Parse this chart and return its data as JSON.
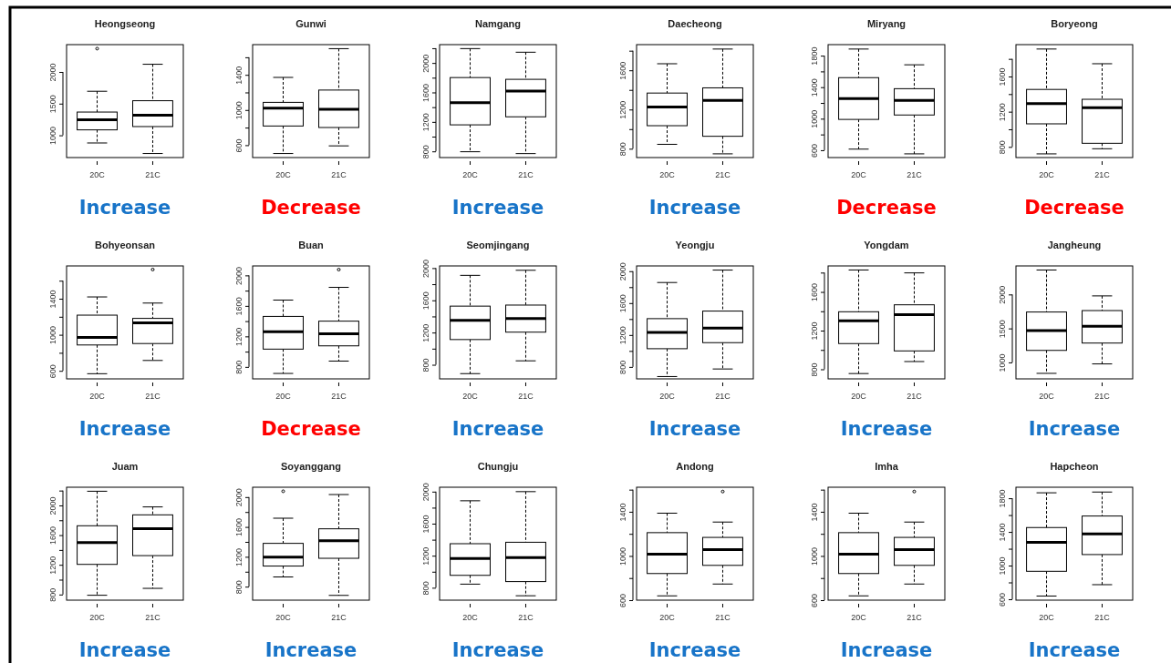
{
  "chart_data": [
    {
      "type": "box",
      "title": "Heongseong",
      "categories": [
        "20C",
        "21C"
      ],
      "ylim": [
        649,
        2431
      ],
      "yticks": [
        1000,
        1500,
        2000
      ],
      "annotations": [
        "Increase"
      ],
      "boxes": [
        {
          "low": 879,
          "q1": 1086,
          "median": 1247,
          "q3": 1367,
          "high": 1695,
          "outliers": [
            2368
          ]
        },
        {
          "low": 713,
          "q1": 1138,
          "median": 1316,
          "q3": 1546,
          "high": 2121
        }
      ]
    },
    {
      "type": "box",
      "title": "Gunwi",
      "categories": [
        "20C",
        "21C"
      ],
      "ylim": [
        459,
        1744
      ],
      "yticks": [
        600,
        {
          "value": 800,
          "label": null
        },
        1000,
        {
          "value": 1200,
          "label": null
        },
        1400,
        {
          "value": 1600,
          "label": null
        }
      ],
      "annotations": [
        "Decrease"
      ],
      "boxes": [
        {
          "low": 505,
          "q1": 818,
          "median": 1021,
          "q3": 1087,
          "high": 1371
        },
        {
          "low": 592,
          "q1": 801,
          "median": 1008,
          "q3": 1227,
          "high": 1698
        }
      ]
    },
    {
      "type": "box",
      "title": "Namgang",
      "categories": [
        "20C",
        "21C"
      ],
      "ylim": [
        716,
        2249
      ],
      "yticks": [
        800,
        {
          "value": 1000,
          "label": null
        },
        1200,
        {
          "value": 1400,
          "label": null
        },
        1600,
        {
          "value": 1800,
          "label": null
        },
        2000,
        {
          "value": 2200,
          "label": null
        }
      ],
      "annotations": [
        "Increase"
      ],
      "boxes": [
        {
          "low": 795,
          "q1": 1160,
          "median": 1462,
          "q3": 1802,
          "high": 2195
        },
        {
          "low": 770,
          "q1": 1269,
          "median": 1620,
          "q3": 1778,
          "high": 2146
        }
      ]
    },
    {
      "type": "box",
      "title": "Daecheong",
      "categories": [
        "20C",
        "21C"
      ],
      "ylim": [
        710,
        1862
      ],
      "yticks": [
        800,
        {
          "value": 1000,
          "label": null
        },
        1200,
        {
          "value": 1400,
          "label": null
        },
        1600,
        {
          "value": 1800,
          "label": null
        }
      ],
      "annotations": [
        "Increase"
      ],
      "boxes": [
        {
          "low": 845,
          "q1": 1035,
          "median": 1226,
          "q3": 1368,
          "high": 1667
        },
        {
          "low": 748,
          "q1": 927,
          "median": 1293,
          "q3": 1421,
          "high": 1817
        }
      ]
    },
    {
      "type": "box",
      "title": "Miryang",
      "categories": [
        "20C",
        "21C"
      ],
      "ylim": [
        507,
        1940
      ],
      "yticks": [
        600,
        {
          "value": 800,
          "label": null
        },
        1000,
        {
          "value": 1200,
          "label": null
        },
        1400,
        {
          "value": 1600,
          "label": null
        },
        1800
      ],
      "annotations": [
        "Decrease"
      ],
      "boxes": [
        {
          "low": 614,
          "q1": 991,
          "median": 1256,
          "q3": 1521,
          "high": 1884
        },
        {
          "low": 554,
          "q1": 1047,
          "median": 1233,
          "q3": 1381,
          "high": 1684
        }
      ]
    },
    {
      "type": "box",
      "title": "Boryeong",
      "categories": [
        "20C",
        "21C"
      ],
      "ylim": [
        679,
        1962
      ],
      "yticks": [
        800,
        {
          "value": 1000,
          "label": null
        },
        1200,
        {
          "value": 1400,
          "label": null
        },
        1600,
        {
          "value": 1800,
          "label": null
        }
      ],
      "annotations": [
        "Decrease"
      ],
      "boxes": [
        {
          "low": 721,
          "q1": 1062,
          "median": 1291,
          "q3": 1453,
          "high": 1912
        },
        {
          "low": 779,
          "q1": 841,
          "median": 1245,
          "q3": 1341,
          "high": 1745
        }
      ]
    },
    {
      "type": "box",
      "title": "Bohyeonsan",
      "categories": [
        "20C",
        "21C"
      ],
      "ylim": [
        511,
        1764
      ],
      "yticks": [
        600,
        {
          "value": 800,
          "label": null
        },
        1000,
        {
          "value": 1200,
          "label": null
        },
        1400,
        {
          "value": 1600,
          "label": null
        }
      ],
      "annotations": [
        "Increase"
      ],
      "boxes": [
        {
          "low": 568,
          "q1": 887,
          "median": 972,
          "q3": 1218,
          "high": 1420
        },
        {
          "low": 715,
          "q1": 903,
          "median": 1133,
          "q3": 1182,
          "high": 1352,
          "outliers": [
            1724
          ]
        }
      ]
    },
    {
      "type": "box",
      "title": "Buan",
      "categories": [
        "20C",
        "21C"
      ],
      "ylim": [
        643,
        2124
      ],
      "yticks": [
        800,
        {
          "value": 1000,
          "label": null
        },
        1200,
        {
          "value": 1400,
          "label": null
        },
        1600,
        {
          "value": 1800,
          "label": null
        },
        2000
      ],
      "annotations": [
        "Decrease"
      ],
      "boxes": [
        {
          "low": 714,
          "q1": 1033,
          "median": 1262,
          "q3": 1462,
          "high": 1676
        },
        {
          "low": 876,
          "q1": 1076,
          "median": 1233,
          "q3": 1400,
          "high": 1843,
          "outliers": [
            2076
          ]
        }
      ]
    },
    {
      "type": "box",
      "title": "Seomjingang",
      "categories": [
        "20C",
        "21C"
      ],
      "ylim": [
        625,
        2027
      ],
      "yticks": [
        800,
        {
          "value": 1000,
          "label": null
        },
        1200,
        {
          "value": 1400,
          "label": null
        },
        1600,
        {
          "value": 1800,
          "label": null
        },
        2000
      ],
      "annotations": [
        "Increase"
      ],
      "boxes": [
        {
          "low": 690,
          "q1": 1113,
          "median": 1352,
          "q3": 1528,
          "high": 1910
        },
        {
          "low": 849,
          "q1": 1205,
          "median": 1374,
          "q3": 1541,
          "high": 1973
        }
      ]
    },
    {
      "type": "box",
      "title": "Yeongju",
      "categories": [
        "20C",
        "21C"
      ],
      "ylim": [
        650,
        2066
      ],
      "yticks": [
        800,
        {
          "value": 1000,
          "label": null
        },
        1200,
        {
          "value": 1400,
          "label": null
        },
        1600,
        {
          "value": 1800,
          "label": null
        },
        2000
      ],
      "annotations": [
        "Increase"
      ],
      "boxes": [
        {
          "low": 679,
          "q1": 1028,
          "median": 1231,
          "q3": 1405,
          "high": 1858
        },
        {
          "low": 774,
          "q1": 1104,
          "median": 1287,
          "q3": 1500,
          "high": 2014
        }
      ]
    },
    {
      "type": "box",
      "title": "Yongdam",
      "categories": [
        "20C",
        "21C"
      ],
      "ylim": [
        701,
        1869
      ],
      "yticks": [
        800,
        {
          "value": 1000,
          "label": null
        },
        1200,
        {
          "value": 1400,
          "label": null
        },
        1600,
        {
          "value": 1800,
          "label": null
        }
      ],
      "annotations": [
        "Increase"
      ],
      "boxes": [
        {
          "low": 756,
          "q1": 1066,
          "median": 1302,
          "q3": 1395,
          "high": 1827
        },
        {
          "low": 880,
          "q1": 990,
          "median": 1365,
          "q3": 1467,
          "high": 1797
        }
      ]
    },
    {
      "type": "box",
      "title": "Jangheung",
      "categories": [
        "20C",
        "21C"
      ],
      "ylim": [
        758,
        2420
      ],
      "yticks": [
        1000,
        1500,
        2000
      ],
      "annotations": [
        "Increase"
      ],
      "boxes": [
        {
          "low": 839,
          "q1": 1177,
          "median": 1468,
          "q3": 1742,
          "high": 2360
        },
        {
          "low": 978,
          "q1": 1285,
          "median": 1532,
          "q3": 1763,
          "high": 1979
        }
      ]
    },
    {
      "type": "box",
      "title": "Juam",
      "categories": [
        "20C",
        "21C"
      ],
      "ylim": [
        724,
        2245
      ],
      "yticks": [
        800,
        {
          "value": 1000,
          "label": null
        },
        1200,
        {
          "value": 1400,
          "label": null
        },
        1600,
        {
          "value": 1800,
          "label": null
        },
        2000,
        {
          "value": 2200,
          "label": null
        }
      ],
      "annotations": [
        "Increase"
      ],
      "boxes": [
        {
          "low": 790,
          "q1": 1206,
          "median": 1500,
          "q3": 1726,
          "high": 2191
        },
        {
          "low": 883,
          "q1": 1324,
          "median": 1687,
          "q3": 1873,
          "high": 1980
        }
      ]
    },
    {
      "type": "box",
      "title": "Soyanggang",
      "categories": [
        "20C",
        "21C"
      ],
      "ylim": [
        619,
        2132
      ],
      "yticks": [
        800,
        {
          "value": 1000,
          "label": null
        },
        1200,
        {
          "value": 1400,
          "label": null
        },
        1600,
        {
          "value": 1800,
          "label": null
        },
        2000
      ],
      "annotations": [
        "Increase"
      ],
      "boxes": [
        {
          "low": 930,
          "q1": 1076,
          "median": 1195,
          "q3": 1380,
          "high": 1717,
          "outliers": [
            2078
          ]
        },
        {
          "low": 683,
          "q1": 1180,
          "median": 1414,
          "q3": 1575,
          "high": 2034
        }
      ]
    },
    {
      "type": "box",
      "title": "Chungju",
      "categories": [
        "20C",
        "21C"
      ],
      "ylim": [
        645,
        2055
      ],
      "yticks": [
        800,
        {
          "value": 1000,
          "label": null
        },
        1200,
        {
          "value": 1400,
          "label": null
        },
        1600,
        {
          "value": 1800,
          "label": null
        },
        2000
      ],
      "annotations": [
        "Increase"
      ],
      "boxes": [
        {
          "low": 845,
          "q1": 955,
          "median": 1164,
          "q3": 1350,
          "high": 1886
        },
        {
          "low": 700,
          "q1": 877,
          "median": 1177,
          "q3": 1368,
          "high": 2000
        }
      ]
    },
    {
      "type": "box",
      "title": "Andong",
      "categories": [
        "20C",
        "21C"
      ],
      "ylim": [
        600,
        1622
      ],
      "yticks": [
        600,
        {
          "value": 800,
          "label": null
        },
        1000,
        {
          "value": 1200,
          "label": null
        },
        1400,
        {
          "value": 1600,
          "label": null
        }
      ],
      "annotations": [
        "Increase"
      ],
      "boxes": [
        {
          "low": 639,
          "q1": 841,
          "median": 1017,
          "q3": 1211,
          "high": 1387
        },
        {
          "low": 746,
          "q1": 915,
          "median": 1058,
          "q3": 1168,
          "high": 1307,
          "outliers": [
            1583
          ]
        }
      ]
    },
    {
      "type": "box",
      "title": "Imha",
      "categories": [
        "20C",
        "21C"
      ],
      "ylim": [
        600,
        1622
      ],
      "yticks": [
        600,
        {
          "value": 800,
          "label": null
        },
        1000,
        {
          "value": 1200,
          "label": null
        },
        1400,
        {
          "value": 1600,
          "label": null
        }
      ],
      "annotations": [
        "Increase"
      ],
      "boxes": [
        {
          "low": 639,
          "q1": 841,
          "median": 1017,
          "q3": 1211,
          "high": 1387
        },
        {
          "low": 746,
          "q1": 915,
          "median": 1058,
          "q3": 1168,
          "high": 1307,
          "outliers": [
            1583
          ]
        }
      ]
    },
    {
      "type": "box",
      "title": "Hapcheon",
      "categories": [
        "20C",
        "21C"
      ],
      "ylim": [
        589,
        1931
      ],
      "yticks": [
        600,
        {
          "value": 800,
          "label": null
        },
        1000,
        {
          "value": 1200,
          "label": null
        },
        1400,
        {
          "value": 1600,
          "label": null
        },
        1800
      ],
      "annotations": [
        "Increase"
      ],
      "boxes": [
        {
          "low": 638,
          "q1": 932,
          "median": 1277,
          "q3": 1452,
          "high": 1865
        },
        {
          "low": 773,
          "q1": 1131,
          "median": 1375,
          "q3": 1589,
          "high": 1874
        }
      ]
    }
  ]
}
